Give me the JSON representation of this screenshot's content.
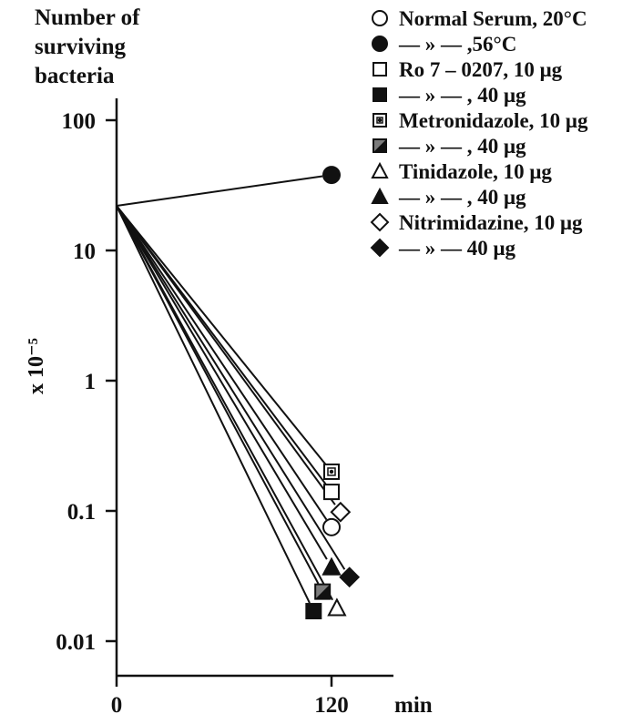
{
  "chart_data": {
    "type": "line",
    "title": "",
    "y_caption": [
      "Number of",
      "surviving",
      "bacteria"
    ],
    "ylabel": "x 10⁻⁵",
    "xlabel": "min",
    "y_scale": "log",
    "ylim": [
      0.005,
      200
    ],
    "xlim": [
      0,
      150
    ],
    "x_ticks": [
      0,
      120
    ],
    "x_tick_labels": [
      "0",
      "120"
    ],
    "y_ticks": [
      100,
      10,
      1,
      0.1,
      0.01
    ],
    "y_tick_labels": [
      "100",
      "10",
      "1",
      "0.1",
      "0.01"
    ],
    "grid": false,
    "legend_position": "top-right",
    "start": {
      "x": 0,
      "y": 22
    },
    "series": [
      {
        "name": "Normal Serum, 20°C",
        "marker": "circle-open",
        "x": 120,
        "y": 0.075
      },
      {
        "name": "— » —   ,56°C",
        "marker": "circle-filled",
        "x": 120,
        "y": 38
      },
      {
        "name": "Ro 7 – 0207,  10 μg",
        "marker": "square-open",
        "x": 120,
        "y": 0.14
      },
      {
        "name": "— » —    ,  40 μg",
        "marker": "square-filled",
        "x": 110,
        "y": 0.017
      },
      {
        "name": "Metronidazole, 10 μg",
        "marker": "square-dot",
        "x": 120,
        "y": 0.2
      },
      {
        "name": "— » —    , 40 μg",
        "marker": "square-half",
        "x": 115,
        "y": 0.024
      },
      {
        "name": "Tinidazole,     10 μg",
        "marker": "triangle-open",
        "x": 123,
        "y": 0.018
      },
      {
        "name": "— » —  ,       40 μg",
        "marker": "triangle-filled",
        "x": 120,
        "y": 0.037
      },
      {
        "name": "Nitrimidazine,  10 μg",
        "marker": "diamond-open",
        "x": 125,
        "y": 0.098
      },
      {
        "name": "— » —         40 μg",
        "marker": "diamond-filled",
        "x": 130,
        "y": 0.031
      }
    ]
  }
}
